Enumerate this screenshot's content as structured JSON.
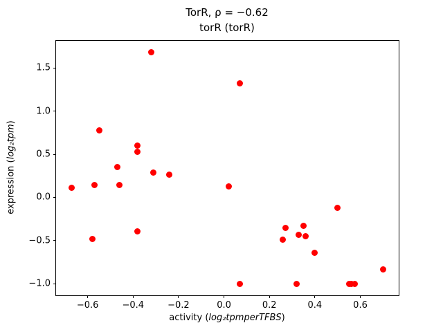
{
  "chart_data": {
    "type": "scatter",
    "title": "TorR, ρ = −0.62",
    "subtitle": "torR (torR)",
    "xlabel_prefix": "activity (",
    "xlabel_math": "log₂tpmperTFBS",
    "xlabel_suffix": ")",
    "ylabel_prefix": "expression (",
    "ylabel_math": "log₂tpm",
    "ylabel_suffix": ")",
    "marker_color": "#ff0000",
    "background_color": "#ffffff",
    "grid": false,
    "legend": false,
    "xlim": [
      -0.739,
      0.769
    ],
    "ylim": [
      -1.134,
      1.814
    ],
    "xticks": [
      {
        "v": -0.6,
        "label": "−0.6"
      },
      {
        "v": -0.4,
        "label": "−0.4"
      },
      {
        "v": -0.2,
        "label": "−0.2"
      },
      {
        "v": 0.0,
        "label": "0.0"
      },
      {
        "v": 0.2,
        "label": "0.2"
      },
      {
        "v": 0.4,
        "label": "0.4"
      },
      {
        "v": 0.6,
        "label": "0.6"
      }
    ],
    "yticks": [
      {
        "v": -1.0,
        "label": "−1.0"
      },
      {
        "v": -0.5,
        "label": "−0.5"
      },
      {
        "v": 0.0,
        "label": "0.0"
      },
      {
        "v": 0.5,
        "label": "0.5"
      },
      {
        "v": 1.0,
        "label": "1.0"
      },
      {
        "v": 1.5,
        "label": "1.5"
      }
    ],
    "points": [
      [
        -0.67,
        0.11
      ],
      [
        -0.58,
        -0.48
      ],
      [
        -0.57,
        0.14
      ],
      [
        -0.55,
        0.78
      ],
      [
        -0.47,
        0.35
      ],
      [
        -0.46,
        0.14
      ],
      [
        -0.38,
        0.6
      ],
      [
        -0.38,
        0.53
      ],
      [
        -0.38,
        -0.39
      ],
      [
        -0.32,
        1.68
      ],
      [
        -0.31,
        0.29
      ],
      [
        -0.24,
        0.26
      ],
      [
        0.02,
        0.13
      ],
      [
        0.07,
        1.32
      ],
      [
        0.07,
        -1.0
      ],
      [
        0.26,
        -0.49
      ],
      [
        0.27,
        -0.35
      ],
      [
        0.32,
        -1.0
      ],
      [
        0.33,
        -0.43
      ],
      [
        0.35,
        -0.33
      ],
      [
        0.36,
        -0.45
      ],
      [
        0.4,
        -0.64
      ],
      [
        0.5,
        -0.12
      ],
      [
        0.55,
        -1.0
      ],
      [
        0.56,
        -1.0
      ],
      [
        0.575,
        -1.0
      ],
      [
        0.7,
        -0.83
      ]
    ]
  }
}
